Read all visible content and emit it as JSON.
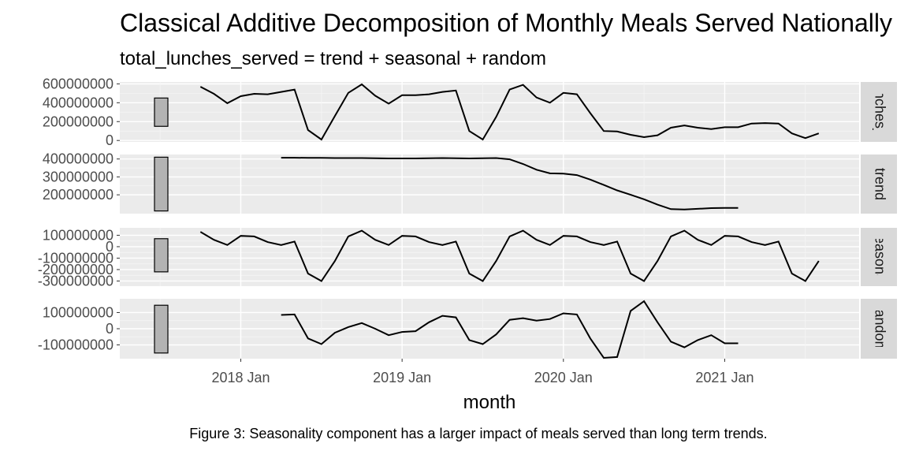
{
  "chart_data": {
    "type": "line",
    "title": "Classical Additive Decomposition of Monthly Meals Served Nationally",
    "subtitle": "total_lunches_served = trend + seasonal + random",
    "xlabel": "month",
    "caption": "Figure 3: Seasonality component has a larger impact of meals served than long term trends.",
    "x_ticks": [
      "2018 Jan",
      "2019 Jan",
      "2020 Jan",
      "2021 Jan"
    ],
    "x": [
      "2017 Oct",
      "2017 Nov",
      "2017 Dec",
      "2018 Jan",
      "2018 Feb",
      "2018 Mar",
      "2018 Apr",
      "2018 May",
      "2018 Jun",
      "2018 Jul",
      "2018 Aug",
      "2018 Sep",
      "2018 Oct",
      "2018 Nov",
      "2018 Dec",
      "2019 Jan",
      "2019 Feb",
      "2019 Mar",
      "2019 Apr",
      "2019 May",
      "2019 Jun",
      "2019 Jul",
      "2019 Aug",
      "2019 Sep",
      "2019 Oct",
      "2019 Nov",
      "2019 Dec",
      "2020 Jan",
      "2020 Feb",
      "2020 Mar",
      "2020 Apr",
      "2020 May",
      "2020 Jun",
      "2020 Jul",
      "2020 Aug",
      "2020 Sep",
      "2020 Oct",
      "2020 Nov",
      "2020 Dec",
      "2021 Jan",
      "2021 Feb",
      "2021 Mar",
      "2021 Apr",
      "2021 May",
      "2021 Jun",
      "2021 Jul",
      "2021 Aug"
    ],
    "panels": [
      {
        "strip": "total_lunches_served",
        "yticks": [
          0,
          200000000,
          400000000,
          600000000
        ],
        "ytick_labels": [
          "0",
          "200000000",
          "400000000",
          "600000000"
        ],
        "ylim": [
          -15000000,
          620000000
        ],
        "range_bar": [
          150000000,
          450000000
        ],
        "values": [
          570000000,
          495000000,
          395000000,
          470000000,
          495000000,
          490000000,
          515000000,
          540000000,
          110000000,
          10000000,
          260000000,
          505000000,
          595000000,
          475000000,
          390000000,
          480000000,
          480000000,
          490000000,
          515000000,
          530000000,
          100000000,
          10000000,
          250000000,
          540000000,
          590000000,
          455000000,
          400000000,
          505000000,
          490000000,
          290000000,
          100000000,
          95000000,
          60000000,
          35000000,
          55000000,
          135000000,
          160000000,
          135000000,
          120000000,
          140000000,
          140000000,
          180000000,
          185000000,
          180000000,
          75000000,
          25000000,
          75000000
        ]
      },
      {
        "strip": "trend",
        "yticks": [
          200000000,
          300000000,
          400000000
        ],
        "ytick_labels": [
          "200000000",
          "300000000",
          "400000000"
        ],
        "ylim": [
          95000000,
          425000000
        ],
        "range_bar": [
          110000000,
          410000000
        ],
        "values": [
          null,
          null,
          null,
          null,
          null,
          null,
          407000000,
          407000000,
          406000000,
          406000000,
          405000000,
          405000000,
          405000000,
          404000000,
          403000000,
          403000000,
          403000000,
          404000000,
          405000000,
          404000000,
          403000000,
          404000000,
          405000000,
          398000000,
          372000000,
          340000000,
          320000000,
          318000000,
          310000000,
          285000000,
          255000000,
          225000000,
          200000000,
          175000000,
          145000000,
          120000000,
          118000000,
          122000000,
          126000000,
          127000000,
          127000000,
          null,
          null,
          null,
          null,
          null,
          null
        ]
      },
      {
        "strip": "seasonal",
        "yticks": [
          -300000000,
          -200000000,
          -100000000,
          0,
          100000000
        ],
        "ytick_labels": [
          "-300000000",
          "-200000000",
          "-100000000",
          "0",
          "100000000"
        ],
        "ylim": [
          -345000000,
          165000000
        ],
        "range_bar": [
          -220000000,
          70000000
        ],
        "values": [
          130000000,
          60000000,
          15000000,
          95000000,
          90000000,
          40000000,
          15000000,
          45000000,
          -235000000,
          -300000000,
          -125000000,
          90000000,
          140000000,
          60000000,
          15000000,
          95000000,
          90000000,
          40000000,
          15000000,
          45000000,
          -235000000,
          -300000000,
          -125000000,
          90000000,
          140000000,
          60000000,
          15000000,
          95000000,
          90000000,
          40000000,
          15000000,
          45000000,
          -235000000,
          -300000000,
          -125000000,
          90000000,
          140000000,
          60000000,
          15000000,
          95000000,
          90000000,
          40000000,
          15000000,
          45000000,
          -235000000,
          -300000000,
          -125000000
        ]
      },
      {
        "strip": "random",
        "yticks": [
          -100000000,
          0,
          100000000
        ],
        "ytick_labels": [
          "-100000000",
          "0",
          "100000000"
        ],
        "ylim": [
          -185000000,
          185000000
        ],
        "range_bar": [
          -150000000,
          145000000
        ],
        "values": [
          null,
          null,
          null,
          null,
          null,
          null,
          85000000,
          88000000,
          -60000000,
          -95000000,
          -25000000,
          10000000,
          35000000,
          0,
          -40000000,
          -20000000,
          -15000000,
          40000000,
          80000000,
          70000000,
          -70000000,
          -95000000,
          -35000000,
          55000000,
          65000000,
          50000000,
          60000000,
          95000000,
          88000000,
          -60000000,
          -180000000,
          -175000000,
          110000000,
          170000000,
          40000000,
          -80000000,
          -115000000,
          -70000000,
          -40000000,
          -90000000,
          -90000000,
          null,
          null,
          null,
          null,
          null,
          null
        ]
      }
    ]
  }
}
